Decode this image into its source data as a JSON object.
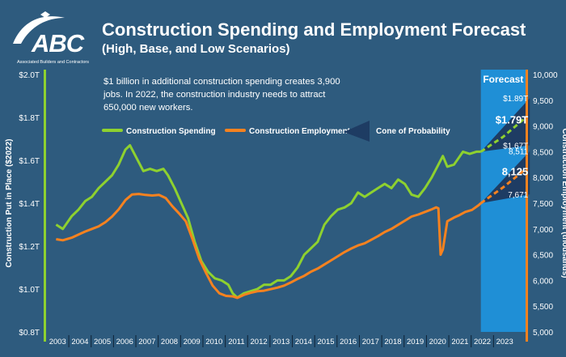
{
  "header": {
    "logo_text": "ABC",
    "logo_subtext": "Associated Builders and Contractors",
    "title": "Construction Spending and Employment Forecast",
    "subtitle": "(High, Base, and Low Scenarios)",
    "note": "$1 billion in additional construction spending creates 3,900 jobs. In 2022, the construction industry needs to attract 650,000 new workers."
  },
  "colors": {
    "background": "#2e5b7e",
    "spending": "#8ed12f",
    "employment": "#f7821f",
    "forecast_band": "#1f8fd6",
    "cone": "#1e3c63"
  },
  "chart_data": {
    "type": "line",
    "title": "Construction Spending and Employment Forecast",
    "subtitle": "(High, Base, and Low Scenarios)",
    "x_ticks": [
      "2003",
      "2004",
      "2005",
      "2006",
      "2007",
      "2008",
      "2009",
      "2010",
      "2011",
      "2012",
      "2013",
      "2014",
      "2015",
      "2016",
      "2017",
      "2018",
      "2019",
      "2020",
      "2021",
      "2022",
      "2023"
    ],
    "forecast_label": "Forecast",
    "forecast_start": 2022,
    "y_left": {
      "label": "Construction Put in Place ($2022)",
      "range": [
        0.8,
        2.0
      ],
      "unit": "T",
      "ticks": [
        "$0.8T",
        "$1.0T",
        "$1.2T",
        "$1.4T",
        "$1.6T",
        "$1.8T",
        "$2.0T"
      ]
    },
    "y_right": {
      "label": "Construction Employment (thousands)",
      "range": [
        5000,
        10000
      ],
      "ticks": [
        "5,000",
        "5,500",
        "6,000",
        "6,500",
        "7,000",
        "7,500",
        "8,000",
        "8,500",
        "9,000",
        "9,500",
        "10,000"
      ]
    },
    "legend": [
      "Construction Spending",
      "Construction Employment",
      "Cone of Probability"
    ],
    "series": [
      {
        "name": "Construction Spending",
        "axis": "left",
        "points": [
          [
            2003.0,
            1.3
          ],
          [
            2003.3,
            1.28
          ],
          [
            2003.7,
            1.34
          ],
          [
            2004.0,
            1.37
          ],
          [
            2004.3,
            1.41
          ],
          [
            2004.6,
            1.43
          ],
          [
            2004.9,
            1.47
          ],
          [
            2005.2,
            1.5
          ],
          [
            2005.5,
            1.53
          ],
          [
            2005.8,
            1.58
          ],
          [
            2006.1,
            1.65
          ],
          [
            2006.3,
            1.67
          ],
          [
            2006.5,
            1.63
          ],
          [
            2006.7,
            1.59
          ],
          [
            2006.9,
            1.55
          ],
          [
            2007.2,
            1.56
          ],
          [
            2007.5,
            1.55
          ],
          [
            2007.8,
            1.56
          ],
          [
            2008.0,
            1.53
          ],
          [
            2008.3,
            1.47
          ],
          [
            2008.6,
            1.4
          ],
          [
            2008.9,
            1.33
          ],
          [
            2009.2,
            1.22
          ],
          [
            2009.5,
            1.13
          ],
          [
            2009.8,
            1.08
          ],
          [
            2010.1,
            1.05
          ],
          [
            2010.4,
            1.04
          ],
          [
            2010.7,
            1.02
          ],
          [
            2010.9,
            0.98
          ],
          [
            2011.1,
            0.96
          ],
          [
            2011.4,
            0.98
          ],
          [
            2011.7,
            0.99
          ],
          [
            2012.0,
            1.0
          ],
          [
            2012.3,
            1.02
          ],
          [
            2012.6,
            1.02
          ],
          [
            2012.9,
            1.04
          ],
          [
            2013.2,
            1.04
          ],
          [
            2013.5,
            1.06
          ],
          [
            2013.8,
            1.1
          ],
          [
            2014.1,
            1.16
          ],
          [
            2014.4,
            1.19
          ],
          [
            2014.7,
            1.22
          ],
          [
            2015.0,
            1.3
          ],
          [
            2015.3,
            1.34
          ],
          [
            2015.6,
            1.37
          ],
          [
            2015.9,
            1.38
          ],
          [
            2016.2,
            1.4
          ],
          [
            2016.5,
            1.45
          ],
          [
            2016.8,
            1.43
          ],
          [
            2017.1,
            1.45
          ],
          [
            2017.4,
            1.47
          ],
          [
            2017.7,
            1.49
          ],
          [
            2018.0,
            1.47
          ],
          [
            2018.3,
            1.51
          ],
          [
            2018.6,
            1.49
          ],
          [
            2018.9,
            1.44
          ],
          [
            2019.2,
            1.43
          ],
          [
            2019.5,
            1.47
          ],
          [
            2019.8,
            1.52
          ],
          [
            2020.1,
            1.58
          ],
          [
            2020.3,
            1.62
          ],
          [
            2020.5,
            1.57
          ],
          [
            2020.8,
            1.58
          ],
          [
            2021.0,
            1.61
          ],
          [
            2021.2,
            1.64
          ],
          [
            2021.5,
            1.63
          ],
          [
            2021.8,
            1.64
          ],
          [
            2022.0,
            1.64
          ]
        ],
        "forecast": [
          [
            2022.0,
            1.64
          ],
          [
            2023.0,
            1.71
          ],
          [
            2023.9,
            1.79
          ]
        ]
      },
      {
        "name": "Construction Employment",
        "axis": "right",
        "points": [
          [
            2003.0,
            6800
          ],
          [
            2003.3,
            6780
          ],
          [
            2003.7,
            6830
          ],
          [
            2004.0,
            6890
          ],
          [
            2004.3,
            6950
          ],
          [
            2004.6,
            7000
          ],
          [
            2004.9,
            7050
          ],
          [
            2005.2,
            7130
          ],
          [
            2005.5,
            7240
          ],
          [
            2005.8,
            7380
          ],
          [
            2006.1,
            7560
          ],
          [
            2006.4,
            7670
          ],
          [
            2006.7,
            7680
          ],
          [
            2007.0,
            7660
          ],
          [
            2007.3,
            7650
          ],
          [
            2007.6,
            7660
          ],
          [
            2007.9,
            7600
          ],
          [
            2008.2,
            7440
          ],
          [
            2008.5,
            7300
          ],
          [
            2008.8,
            7150
          ],
          [
            2009.1,
            6800
          ],
          [
            2009.4,
            6420
          ],
          [
            2009.7,
            6150
          ],
          [
            2010.0,
            5900
          ],
          [
            2010.3,
            5750
          ],
          [
            2010.6,
            5700
          ],
          [
            2010.9,
            5690
          ],
          [
            2011.1,
            5660
          ],
          [
            2011.4,
            5720
          ],
          [
            2011.7,
            5760
          ],
          [
            2012.0,
            5790
          ],
          [
            2012.3,
            5800
          ],
          [
            2012.6,
            5830
          ],
          [
            2012.9,
            5860
          ],
          [
            2013.2,
            5900
          ],
          [
            2013.5,
            5960
          ],
          [
            2013.8,
            6030
          ],
          [
            2014.1,
            6090
          ],
          [
            2014.4,
            6170
          ],
          [
            2014.7,
            6230
          ],
          [
            2015.0,
            6310
          ],
          [
            2015.3,
            6390
          ],
          [
            2015.6,
            6470
          ],
          [
            2015.9,
            6550
          ],
          [
            2016.2,
            6620
          ],
          [
            2016.5,
            6680
          ],
          [
            2016.8,
            6720
          ],
          [
            2017.1,
            6790
          ],
          [
            2017.4,
            6860
          ],
          [
            2017.7,
            6940
          ],
          [
            2018.0,
            7000
          ],
          [
            2018.3,
            7080
          ],
          [
            2018.6,
            7160
          ],
          [
            2018.9,
            7240
          ],
          [
            2019.2,
            7280
          ],
          [
            2019.5,
            7330
          ],
          [
            2019.8,
            7380
          ],
          [
            2020.0,
            7420
          ],
          [
            2020.1,
            7400
          ],
          [
            2020.2,
            6500
          ],
          [
            2020.3,
            6600
          ],
          [
            2020.5,
            7150
          ],
          [
            2020.8,
            7220
          ],
          [
            2021.0,
            7260
          ],
          [
            2021.3,
            7330
          ],
          [
            2021.6,
            7370
          ],
          [
            2021.9,
            7460
          ],
          [
            2022.0,
            7500
          ]
        ],
        "forecast": [
          [
            2022.0,
            7500
          ],
          [
            2023.0,
            7810
          ],
          [
            2023.9,
            8125
          ]
        ]
      }
    ],
    "cones": [
      {
        "series": "Construction Spending",
        "axis": "left",
        "start": [
          2022.0,
          1.64
        ],
        "end_x": 2023.9,
        "high": 1.89,
        "base": 1.79,
        "low": 1.67
      },
      {
        "series": "Construction Employment",
        "axis": "right",
        "start": [
          2022.0,
          7500
        ],
        "end_x": 2023.9,
        "high": 8511,
        "base": 8125,
        "low": 7671
      }
    ],
    "annotations": [
      {
        "text": "$1.89T",
        "x": 2023.9,
        "y": 1.89,
        "axis": "left",
        "bold": false
      },
      {
        "text": "$1.79T",
        "x": 2023.9,
        "y": 1.79,
        "axis": "left",
        "bold": true
      },
      {
        "text": "$1.67T",
        "x": 2023.9,
        "y": 1.67,
        "axis": "left",
        "bold": false
      },
      {
        "text": "8,511",
        "x": 2023.9,
        "y": 8511,
        "axis": "right",
        "bold": false
      },
      {
        "text": "8,125",
        "x": 2023.9,
        "y": 8125,
        "axis": "right",
        "bold": true
      },
      {
        "text": "7,671",
        "x": 2023.9,
        "y": 7671,
        "axis": "right",
        "bold": false
      }
    ]
  }
}
